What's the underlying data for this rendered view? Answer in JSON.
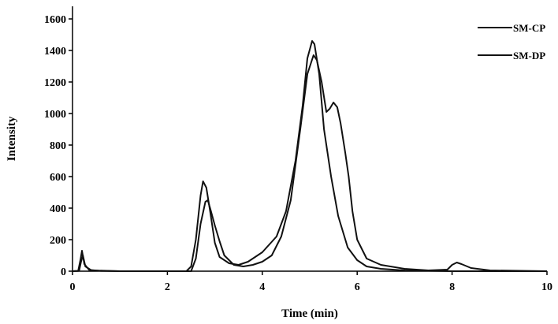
{
  "chart_data": {
    "type": "line",
    "title": "",
    "xlabel": "Time (min)",
    "ylabel": "Intensity",
    "xlim": [
      0,
      10
    ],
    "ylim": [
      0,
      1700
    ],
    "x_ticks": [
      "0",
      "2",
      "4",
      "6",
      "8",
      "10"
    ],
    "y_ticks": [
      "0",
      "200",
      "400",
      "600",
      "800",
      "1000",
      "1200",
      "1400",
      "1600"
    ],
    "grid": false,
    "legend_position": "top-right",
    "line_color": "#111111",
    "series": [
      {
        "name": "SM-CP",
        "points": [
          [
            0,
            0
          ],
          [
            0.12,
            2
          ],
          [
            0.17,
            75
          ],
          [
            0.2,
            130
          ],
          [
            0.25,
            45
          ],
          [
            0.35,
            8
          ],
          [
            0.6,
            2
          ],
          [
            1.0,
            0
          ],
          [
            2.4,
            0
          ],
          [
            2.5,
            30
          ],
          [
            2.6,
            200
          ],
          [
            2.7,
            480
          ],
          [
            2.75,
            570
          ],
          [
            2.82,
            530
          ],
          [
            2.9,
            380
          ],
          [
            3.0,
            180
          ],
          [
            3.1,
            90
          ],
          [
            3.3,
            50
          ],
          [
            3.5,
            40
          ],
          [
            3.7,
            60
          ],
          [
            4.0,
            120
          ],
          [
            4.3,
            220
          ],
          [
            4.5,
            380
          ],
          [
            4.7,
            700
          ],
          [
            4.85,
            1050
          ],
          [
            4.95,
            1350
          ],
          [
            5.05,
            1460
          ],
          [
            5.1,
            1440
          ],
          [
            5.2,
            1250
          ],
          [
            5.3,
            900
          ],
          [
            5.45,
            600
          ],
          [
            5.6,
            350
          ],
          [
            5.8,
            150
          ],
          [
            6.0,
            70
          ],
          [
            6.2,
            30
          ],
          [
            6.5,
            15
          ],
          [
            7.0,
            5
          ],
          [
            8.0,
            0
          ],
          [
            10,
            0
          ]
        ]
      },
      {
        "name": "SM-DP",
        "points": [
          [
            0,
            0
          ],
          [
            0.14,
            2
          ],
          [
            0.18,
            60
          ],
          [
            0.22,
            100
          ],
          [
            0.27,
            30
          ],
          [
            0.4,
            5
          ],
          [
            1.0,
            0
          ],
          [
            2.5,
            0
          ],
          [
            2.6,
            80
          ],
          [
            2.7,
            300
          ],
          [
            2.8,
            440
          ],
          [
            2.85,
            450
          ],
          [
            2.9,
            400
          ],
          [
            3.0,
            290
          ],
          [
            3.1,
            190
          ],
          [
            3.2,
            100
          ],
          [
            3.4,
            40
          ],
          [
            3.6,
            30
          ],
          [
            3.8,
            40
          ],
          [
            4.0,
            60
          ],
          [
            4.2,
            100
          ],
          [
            4.4,
            220
          ],
          [
            4.6,
            450
          ],
          [
            4.8,
            900
          ],
          [
            4.95,
            1250
          ],
          [
            5.08,
            1370
          ],
          [
            5.15,
            1340
          ],
          [
            5.25,
            1200
          ],
          [
            5.35,
            1010
          ],
          [
            5.42,
            1030
          ],
          [
            5.5,
            1070
          ],
          [
            5.58,
            1040
          ],
          [
            5.65,
            940
          ],
          [
            5.75,
            750
          ],
          [
            5.82,
            600
          ],
          [
            5.9,
            380
          ],
          [
            6.0,
            200
          ],
          [
            6.2,
            80
          ],
          [
            6.5,
            40
          ],
          [
            7.0,
            15
          ],
          [
            7.5,
            5
          ],
          [
            7.9,
            10
          ],
          [
            8.0,
            40
          ],
          [
            8.1,
            55
          ],
          [
            8.2,
            45
          ],
          [
            8.4,
            20
          ],
          [
            8.8,
            5
          ],
          [
            10,
            0
          ]
        ]
      }
    ]
  }
}
